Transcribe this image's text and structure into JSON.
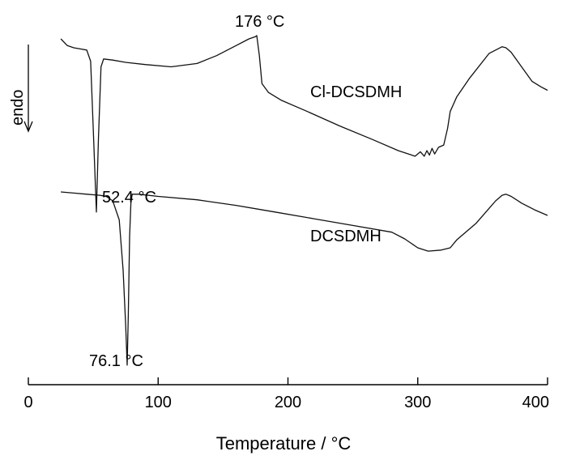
{
  "chart_data": {
    "type": "line",
    "xlabel": "Temperature / °C",
    "xlim": [
      0,
      400
    ],
    "xticks": [
      0,
      100,
      200,
      300,
      400
    ],
    "xtick_labels": [
      "0",
      "100",
      "200",
      "300",
      "400"
    ],
    "y_axis_visible": false,
    "endo_label": "endo",
    "series": [
      {
        "name": "Cl-DCSDMH",
        "x": [
          25,
          30,
          35,
          40,
          45,
          48,
          50,
          52.4,
          54,
          56,
          58,
          65,
          75,
          90,
          110,
          130,
          145,
          160,
          170,
          175,
          176,
          178,
          180,
          185,
          195,
          215,
          240,
          265,
          285,
          298,
          302,
          305,
          307,
          309,
          311,
          313,
          316,
          320,
          323,
          325,
          330,
          340,
          355,
          365,
          368,
          372,
          380,
          388,
          395,
          400
        ],
        "y": [
          0.0,
          -0.06,
          -0.08,
          -0.09,
          -0.1,
          -0.2,
          -0.8,
          -1.55,
          -0.9,
          -0.25,
          -0.18,
          -0.19,
          -0.21,
          -0.23,
          -0.25,
          -0.22,
          -0.15,
          -0.06,
          0.0,
          0.02,
          0.03,
          -0.15,
          -0.4,
          -0.48,
          -0.55,
          -0.65,
          -0.78,
          -0.9,
          -1.0,
          -1.05,
          -1.01,
          -1.05,
          -1.0,
          -1.04,
          -0.98,
          -1.03,
          -0.97,
          -0.95,
          -0.8,
          -0.65,
          -0.52,
          -0.35,
          -0.13,
          -0.07,
          -0.08,
          -0.12,
          -0.25,
          -0.38,
          -0.43,
          -0.46
        ]
      },
      {
        "name": "DCSDMH",
        "x": [
          25,
          35,
          45,
          55,
          60,
          65,
          70,
          73,
          75,
          76.1,
          77,
          78,
          79,
          80,
          85,
          100,
          130,
          160,
          190,
          220,
          250,
          280,
          290,
          300,
          308,
          318,
          325,
          330,
          345,
          360,
          365,
          368,
          372,
          380,
          390,
          400
        ],
        "y": [
          0.0,
          -0.01,
          -0.02,
          -0.03,
          -0.04,
          -0.08,
          -0.25,
          -0.7,
          -1.2,
          -1.55,
          -1.1,
          -0.4,
          -0.1,
          -0.02,
          -0.02,
          -0.04,
          -0.07,
          -0.12,
          -0.18,
          -0.24,
          -0.3,
          -0.36,
          -0.42,
          -0.5,
          -0.53,
          -0.52,
          -0.5,
          -0.43,
          -0.28,
          -0.08,
          -0.03,
          -0.02,
          -0.04,
          -0.1,
          -0.16,
          -0.21
        ]
      }
    ],
    "annotations": [
      {
        "text": "176 °C",
        "series": 0,
        "x": 176
      },
      {
        "text": "52.4 °C",
        "series": 0,
        "x": 52.4
      },
      {
        "text": "76.1 °C",
        "series": 1,
        "x": 76.1
      }
    ]
  }
}
